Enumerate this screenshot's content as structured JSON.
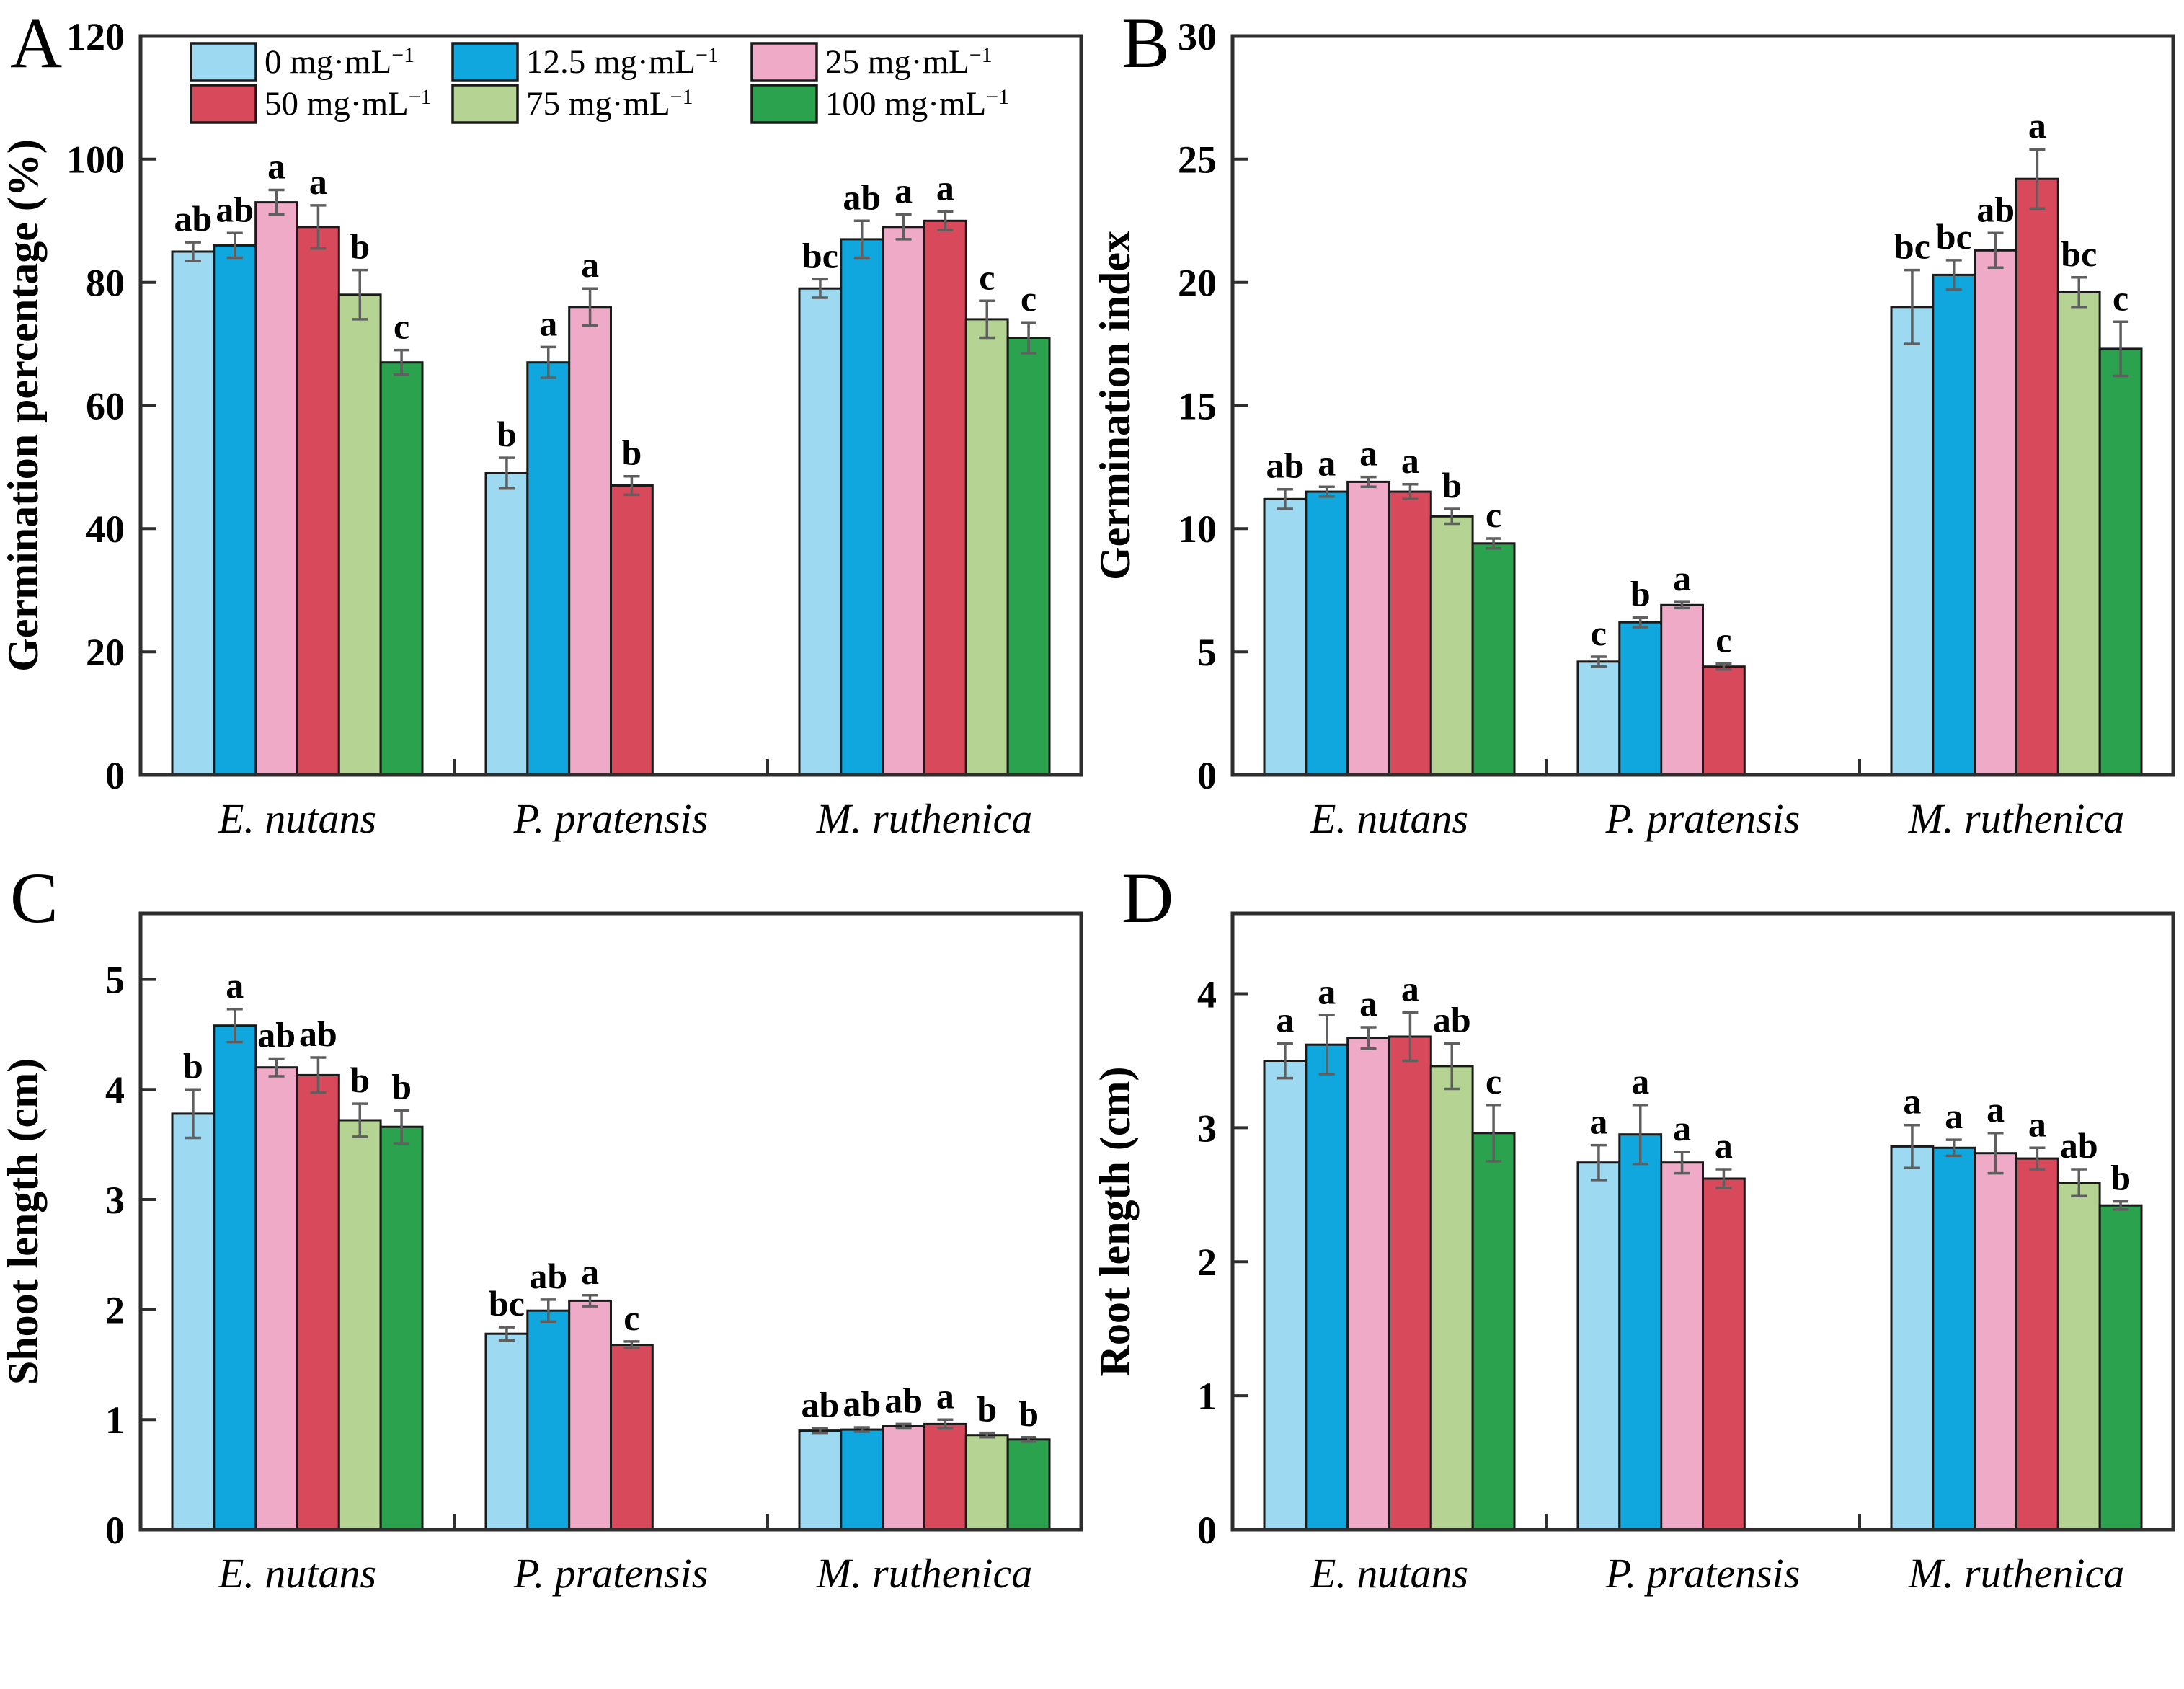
{
  "figure": {
    "background": "#ffffff",
    "frame_color": "#2e2e2e",
    "bar_outline_color": "#1a1a1a",
    "error_bar_color": "#5f5f5f"
  },
  "legend": {
    "position": "top-inside-panel-A",
    "items": [
      {
        "label": "0 mg·mL⁻¹",
        "color": "#9dd9f1"
      },
      {
        "label": "12.5 mg·mL⁻¹",
        "color": "#10a7de"
      },
      {
        "label": "25 mg·mL⁻¹",
        "color": "#efaac7"
      },
      {
        "label": "50 mg·mL⁻¹",
        "color": "#d8495b"
      },
      {
        "label": "75 mg·mL⁻¹",
        "color": "#b5d494"
      },
      {
        "label": "100 mg·mL⁻¹",
        "color": "#2ba24d"
      }
    ]
  },
  "categories": [
    "E. nutans",
    "P. pratensis",
    "M. ruthenica"
  ],
  "chart_data": [
    {
      "type": "bar",
      "panel_label": "A",
      "ylabel": "Germination percentage (%)",
      "ylim": [
        0,
        120
      ],
      "ytick_step": 20,
      "grid": false,
      "show_legend": true,
      "categories": [
        "E. nutans",
        "P. pratensis",
        "M. ruthenica"
      ],
      "series": [
        {
          "name": "0 mg·mL⁻¹",
          "color": "#9dd9f1",
          "values": [
            85,
            49,
            79
          ],
          "errors": [
            1.5,
            2.5,
            1.5
          ],
          "letters": [
            "ab",
            "b",
            "bc"
          ]
        },
        {
          "name": "12.5 mg·mL⁻¹",
          "color": "#10a7de",
          "values": [
            86,
            67,
            87
          ],
          "errors": [
            2,
            2.5,
            3
          ],
          "letters": [
            "ab",
            "a",
            "ab"
          ]
        },
        {
          "name": "25 mg·mL⁻¹",
          "color": "#efaac7",
          "values": [
            93,
            76,
            89
          ],
          "errors": [
            2,
            3,
            2
          ],
          "letters": [
            "a",
            "a",
            "a"
          ]
        },
        {
          "name": "50 mg·mL⁻¹",
          "color": "#d8495b",
          "values": [
            89,
            47,
            90
          ],
          "errors": [
            3.5,
            1.5,
            1.5
          ],
          "letters": [
            "a",
            "b",
            "a"
          ]
        },
        {
          "name": "75 mg·mL⁻¹",
          "color": "#b5d494",
          "values": [
            78,
            null,
            74
          ],
          "errors": [
            4,
            null,
            3
          ],
          "letters": [
            "b",
            null,
            "c"
          ]
        },
        {
          "name": "100 mg·mL⁻¹",
          "color": "#2ba24d",
          "values": [
            67,
            null,
            71
          ],
          "errors": [
            2,
            null,
            2.5
          ],
          "letters": [
            "c",
            null,
            "c"
          ]
        }
      ]
    },
    {
      "type": "bar",
      "panel_label": "B",
      "ylabel": "Germination index",
      "ylim": [
        0,
        30
      ],
      "ytick_step": 5,
      "grid": false,
      "show_legend": false,
      "categories": [
        "E. nutans",
        "P. pratensis",
        "M. ruthenica"
      ],
      "series": [
        {
          "name": "0 mg·mL⁻¹",
          "color": "#9dd9f1",
          "values": [
            11.2,
            4.6,
            19.0
          ],
          "errors": [
            0.4,
            0.2,
            1.5
          ],
          "letters": [
            "ab",
            "c",
            "bc"
          ]
        },
        {
          "name": "12.5 mg·mL⁻¹",
          "color": "#10a7de",
          "values": [
            11.5,
            6.2,
            20.3
          ],
          "errors": [
            0.2,
            0.2,
            0.6
          ],
          "letters": [
            "a",
            "b",
            "bc"
          ]
        },
        {
          "name": "25 mg·mL⁻¹",
          "color": "#efaac7",
          "values": [
            11.9,
            6.9,
            21.3
          ],
          "errors": [
            0.2,
            0.12,
            0.7
          ],
          "letters": [
            "a",
            "a",
            "ab"
          ]
        },
        {
          "name": "50 mg·mL⁻¹",
          "color": "#d8495b",
          "values": [
            11.5,
            4.4,
            24.2
          ],
          "errors": [
            0.3,
            0.12,
            1.2
          ],
          "letters": [
            "a",
            "c",
            "a"
          ]
        },
        {
          "name": "75 mg·mL⁻¹",
          "color": "#b5d494",
          "values": [
            10.5,
            null,
            19.6
          ],
          "errors": [
            0.3,
            null,
            0.6
          ],
          "letters": [
            "b",
            null,
            "bc"
          ]
        },
        {
          "name": "100 mg·mL⁻¹",
          "color": "#2ba24d",
          "values": [
            9.4,
            null,
            17.3
          ],
          "errors": [
            0.2,
            null,
            1.1
          ],
          "letters": [
            "c",
            null,
            "c"
          ]
        }
      ]
    },
    {
      "type": "bar",
      "panel_label": "C",
      "ylabel": "Shoot length (cm)",
      "ylim": [
        0,
        5.6
      ],
      "ytick_step": 1,
      "grid": false,
      "show_legend": false,
      "categories": [
        "E. nutans",
        "P. pratensis",
        "M. ruthenica"
      ],
      "series": [
        {
          "name": "0 mg·mL⁻¹",
          "color": "#9dd9f1",
          "values": [
            3.78,
            1.78,
            0.9
          ],
          "errors": [
            0.22,
            0.06,
            0.02
          ],
          "letters": [
            "b",
            "bc",
            "ab"
          ]
        },
        {
          "name": "12.5 mg·mL⁻¹",
          "color": "#10a7de",
          "values": [
            4.58,
            1.99,
            0.91
          ],
          "errors": [
            0.15,
            0.1,
            0.02
          ],
          "letters": [
            "a",
            "ab",
            "ab"
          ]
        },
        {
          "name": "25 mg·mL⁻¹",
          "color": "#efaac7",
          "values": [
            4.2,
            2.08,
            0.94
          ],
          "errors": [
            0.08,
            0.05,
            0.02
          ],
          "letters": [
            "ab",
            "a",
            "ab"
          ]
        },
        {
          "name": "50 mg·mL⁻¹",
          "color": "#d8495b",
          "values": [
            4.13,
            1.68,
            0.96
          ],
          "errors": [
            0.16,
            0.03,
            0.04
          ],
          "letters": [
            "ab",
            "c",
            "a"
          ]
        },
        {
          "name": "75 mg·mL⁻¹",
          "color": "#b5d494",
          "values": [
            3.72,
            null,
            0.86
          ],
          "errors": [
            0.15,
            null,
            0.02
          ],
          "letters": [
            "b",
            null,
            "b"
          ]
        },
        {
          "name": "100 mg·mL⁻¹",
          "color": "#2ba24d",
          "values": [
            3.66,
            null,
            0.82
          ],
          "errors": [
            0.15,
            null,
            0.02
          ],
          "letters": [
            "b",
            null,
            "b"
          ]
        }
      ]
    },
    {
      "type": "bar",
      "panel_label": "D",
      "ylabel": "Root length (cm)",
      "ylim": [
        0,
        4.6
      ],
      "ytick_step": 1,
      "grid": false,
      "show_legend": false,
      "categories": [
        "E. nutans",
        "P. pratensis",
        "M. ruthenica"
      ],
      "series": [
        {
          "name": "0 mg·mL⁻¹",
          "color": "#9dd9f1",
          "values": [
            3.5,
            2.74,
            2.86
          ],
          "errors": [
            0.13,
            0.13,
            0.16
          ],
          "letters": [
            "a",
            "a",
            "a"
          ]
        },
        {
          "name": "12.5 mg·mL⁻¹",
          "color": "#10a7de",
          "values": [
            3.62,
            2.95,
            2.85
          ],
          "errors": [
            0.22,
            0.22,
            0.06
          ],
          "letters": [
            "a",
            "a",
            "a"
          ]
        },
        {
          "name": "25 mg·mL⁻¹",
          "color": "#efaac7",
          "values": [
            3.67,
            2.74,
            2.81
          ],
          "errors": [
            0.08,
            0.08,
            0.15
          ],
          "letters": [
            "a",
            "a",
            "a"
          ]
        },
        {
          "name": "50 mg·mL⁻¹",
          "color": "#d8495b",
          "values": [
            3.68,
            2.62,
            2.77
          ],
          "errors": [
            0.18,
            0.07,
            0.08
          ],
          "letters": [
            "a",
            "a",
            "a"
          ]
        },
        {
          "name": "75 mg·mL⁻¹",
          "color": "#b5d494",
          "values": [
            3.46,
            null,
            2.59
          ],
          "errors": [
            0.17,
            null,
            0.1
          ],
          "letters": [
            "ab",
            null,
            "ab"
          ]
        },
        {
          "name": "100 mg·mL⁻¹",
          "color": "#2ba24d",
          "values": [
            2.96,
            null,
            2.42
          ],
          "errors": [
            0.21,
            null,
            0.03
          ],
          "letters": [
            "c",
            null,
            "b"
          ]
        }
      ]
    }
  ]
}
